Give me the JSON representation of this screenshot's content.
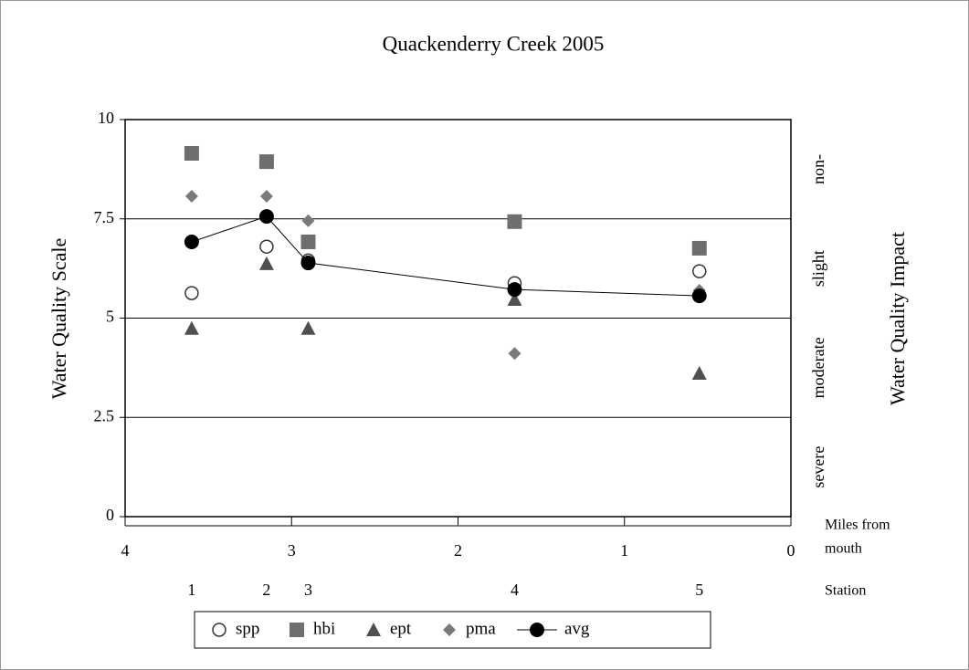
{
  "chart_data": {
    "type": "scatter",
    "title": "Quackenderry Creek 2005",
    "y_label": "Water Quality Scale",
    "y2_label": "Water Quality Impact",
    "x_label_lines": [
      "Miles from",
      "mouth"
    ],
    "station_label": "Station",
    "x": [
      3.6,
      3.15,
      2.9,
      1.66,
      0.55
    ],
    "stations": [
      "1",
      "2",
      "3",
      "4",
      "5"
    ],
    "xlim": [
      4,
      0
    ],
    "xticks": [
      4,
      3,
      2,
      1,
      0
    ],
    "ylim": [
      0,
      10
    ],
    "yticks": [
      0,
      2.5,
      5,
      7.5,
      10
    ],
    "grid": true,
    "impact_bands": [
      "severe",
      "moderate",
      "slight",
      "non-"
    ],
    "legend": "bottom",
    "series": [
      {
        "name": "spp",
        "marker": "open-circle",
        "color": "#333333",
        "values": [
          5.63,
          6.8,
          6.45,
          5.88,
          6.18
        ]
      },
      {
        "name": "hbi",
        "marker": "square",
        "color": "#6e6e6e",
        "values": [
          9.15,
          8.94,
          6.92,
          7.43,
          6.76
        ]
      },
      {
        "name": "ept",
        "marker": "triangle",
        "color": "#505050",
        "values": [
          4.74,
          6.37,
          4.74,
          5.47,
          3.61
        ]
      },
      {
        "name": "pma",
        "marker": "diamond",
        "color": "#7a7a7a",
        "values": [
          8.07,
          8.07,
          7.45,
          4.11,
          5.7
        ]
      },
      {
        "name": "avg",
        "marker": "circle",
        "line": true,
        "color": "#000000",
        "values": [
          6.92,
          7.56,
          6.39,
          5.72,
          5.56
        ]
      }
    ]
  }
}
